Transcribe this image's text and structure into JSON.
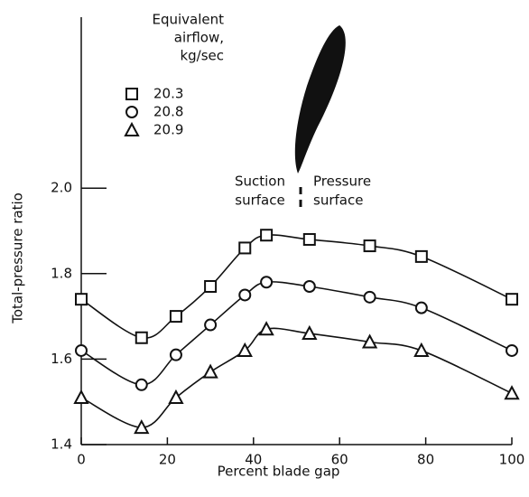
{
  "chart_data": {
    "type": "line",
    "x": [
      0,
      14,
      22,
      30,
      38,
      43,
      53,
      67,
      79,
      100
    ],
    "series": [
      {
        "name": "20.3",
        "marker": "square",
        "color": "#111",
        "values": [
          1.74,
          1.65,
          1.7,
          1.77,
          1.86,
          1.89,
          1.88,
          1.865,
          1.84,
          1.74
        ]
      },
      {
        "name": "20.8",
        "marker": "circle",
        "color": "#111",
        "values": [
          1.62,
          1.54,
          1.61,
          1.68,
          1.75,
          1.78,
          1.77,
          1.745,
          1.72,
          1.62
        ]
      },
      {
        "name": "20.9",
        "marker": "triangle",
        "color": "#111",
        "values": [
          1.51,
          1.44,
          1.51,
          1.57,
          1.62,
          1.67,
          1.66,
          1.64,
          1.62,
          1.52
        ]
      }
    ],
    "xlabel": "Percent blade gap",
    "ylabel": "Total-pressure ratio",
    "xlim": [
      0,
      100
    ],
    "xticks": [
      0,
      20,
      40,
      60,
      80,
      100
    ],
    "ylim": [
      1.4,
      2.4
    ],
    "yticks": [
      1.4,
      1.6,
      1.8,
      {
        "value": 2,
        "label": "2.0"
      }
    ],
    "legend_title": [
      "Equivalent",
      "airflow,",
      "kg/sec"
    ],
    "annotations": [
      [
        "Suction",
        "surface"
      ],
      [
        "Pressure",
        "surface"
      ]
    ]
  }
}
